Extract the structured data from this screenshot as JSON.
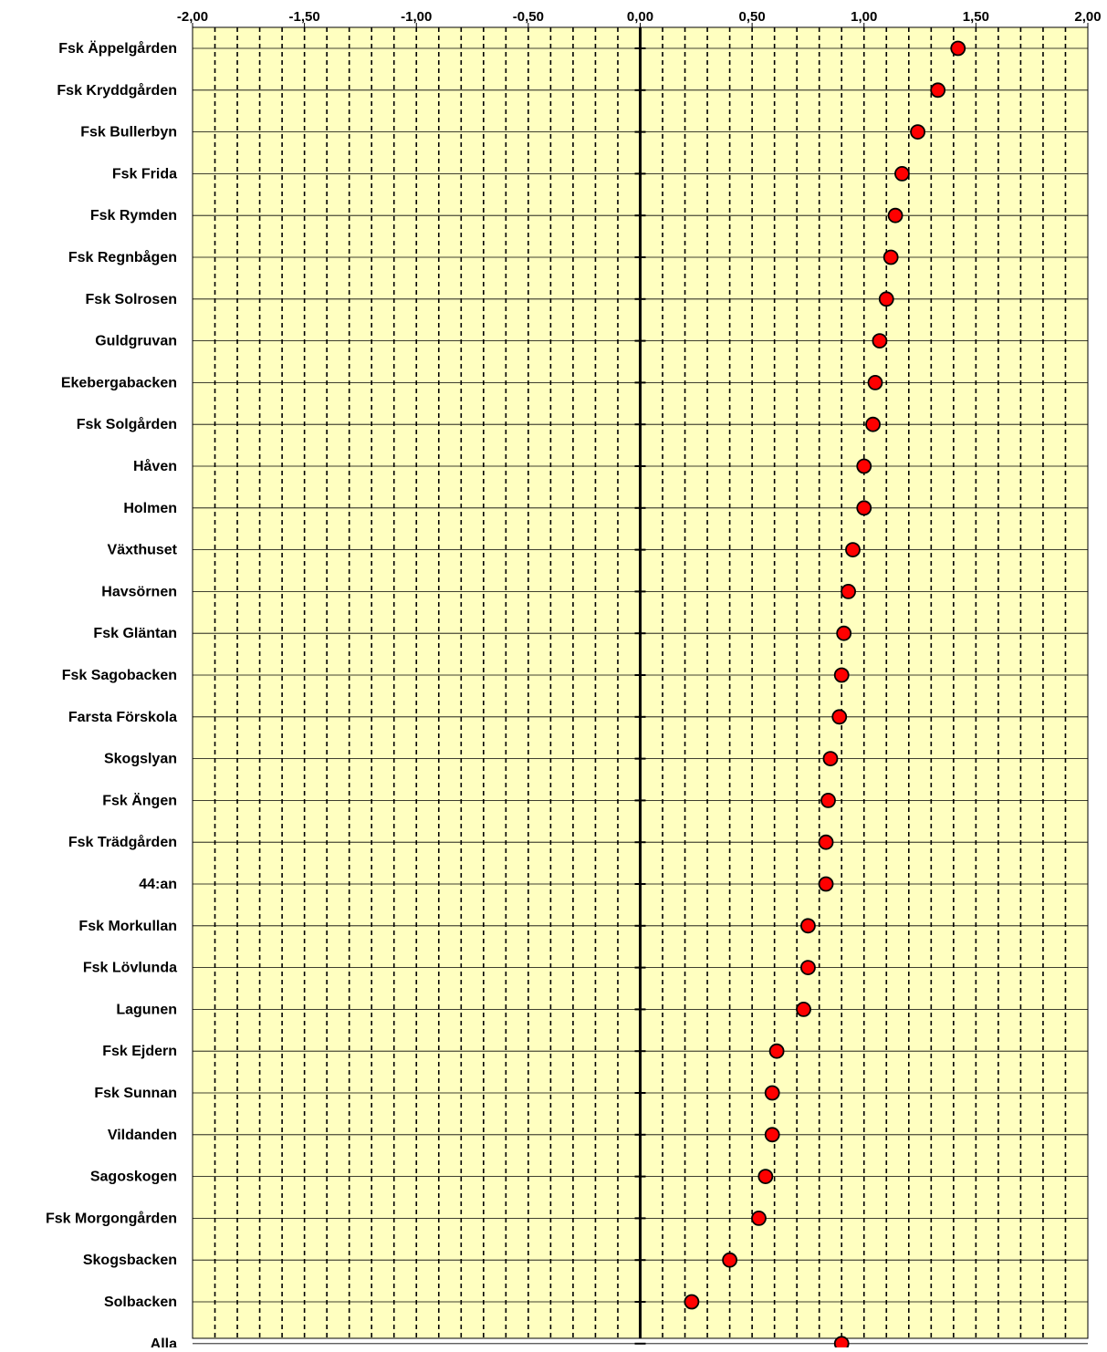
{
  "colors": {
    "plot_background": "#FFFFC0",
    "marker_fill": "#FF0000",
    "marker_stroke": "#000000",
    "gridline": "#000000"
  },
  "chart_data": {
    "type": "scatter",
    "orientation": "horizontal-dot-plot",
    "title": "",
    "xlabel": "",
    "ylabel": "",
    "xlim": [
      -2.0,
      2.0
    ],
    "x_ticks": [
      -2.0,
      -1.5,
      -1.0,
      -0.5,
      0.0,
      0.5,
      1.0,
      1.5,
      2.0
    ],
    "x_tick_labels": [
      "-2,00",
      "-1,50",
      "-1,00",
      "-0,50",
      "0,00",
      "0,50",
      "1,00",
      "1,50",
      "2,00"
    ],
    "x_axis_position": "top",
    "grid": true,
    "categories": [
      "Fsk Äppelgården",
      "Fsk Kryddgården",
      "Fsk Bullerbyn",
      "Fsk Frida",
      "Fsk Rymden",
      "Fsk Regnbågen",
      "Fsk Solrosen",
      "Guldgruvan",
      "Ekebergabacken",
      "Fsk Solgården",
      "Håven",
      "Holmen",
      "Växthuset",
      "Havsörnen",
      "Fsk Gläntan",
      "Fsk Sagobacken",
      "Farsta Förskola",
      "Skogslyan",
      "Fsk Ängen",
      "Fsk Trädgården",
      "44:an",
      "Fsk Morkullan",
      "Fsk Lövlunda",
      "Lagunen",
      "Fsk Ejdern",
      "Fsk Sunnan",
      "Vildanden",
      "Sagoskogen",
      "Fsk Morgongården",
      "Skogsbacken",
      "Solbacken",
      "Alla"
    ],
    "values": [
      1.42,
      1.33,
      1.24,
      1.17,
      1.14,
      1.12,
      1.1,
      1.07,
      1.05,
      1.04,
      1.0,
      1.0,
      0.95,
      0.93,
      0.91,
      0.9,
      0.89,
      0.85,
      0.84,
      0.83,
      0.83,
      0.75,
      0.75,
      0.73,
      0.61,
      0.59,
      0.59,
      0.56,
      0.53,
      0.4,
      0.23,
      0.9
    ]
  }
}
